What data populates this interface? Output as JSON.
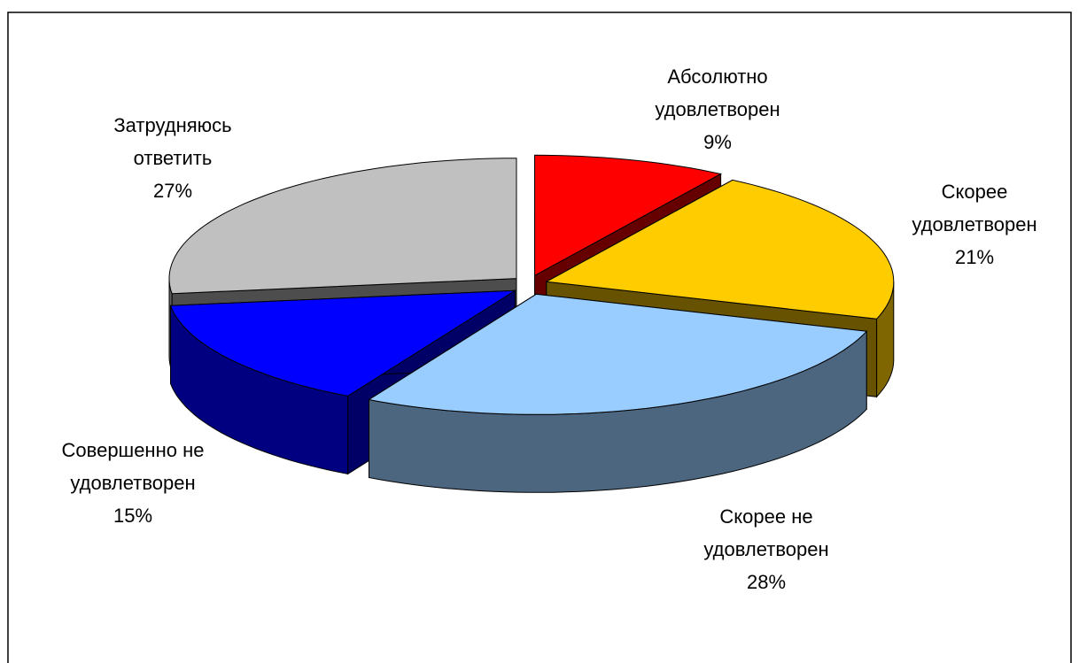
{
  "chart_data": {
    "type": "pie",
    "categories": [
      "Абсолютно удовлетворен",
      "Скорее удовлетворен",
      "Скорее не удовлетворен",
      "Совершенно не удовлетворен",
      "Затрудняюсь ответить"
    ],
    "values": [
      9,
      21,
      28,
      15,
      27
    ],
    "value_labels": [
      "9%",
      "21%",
      "28%",
      "15%",
      "27%"
    ],
    "colors": [
      "#ff0000",
      "#ffcc00",
      "#99ccff",
      "#0000ff",
      "#c0c0c0"
    ]
  }
}
